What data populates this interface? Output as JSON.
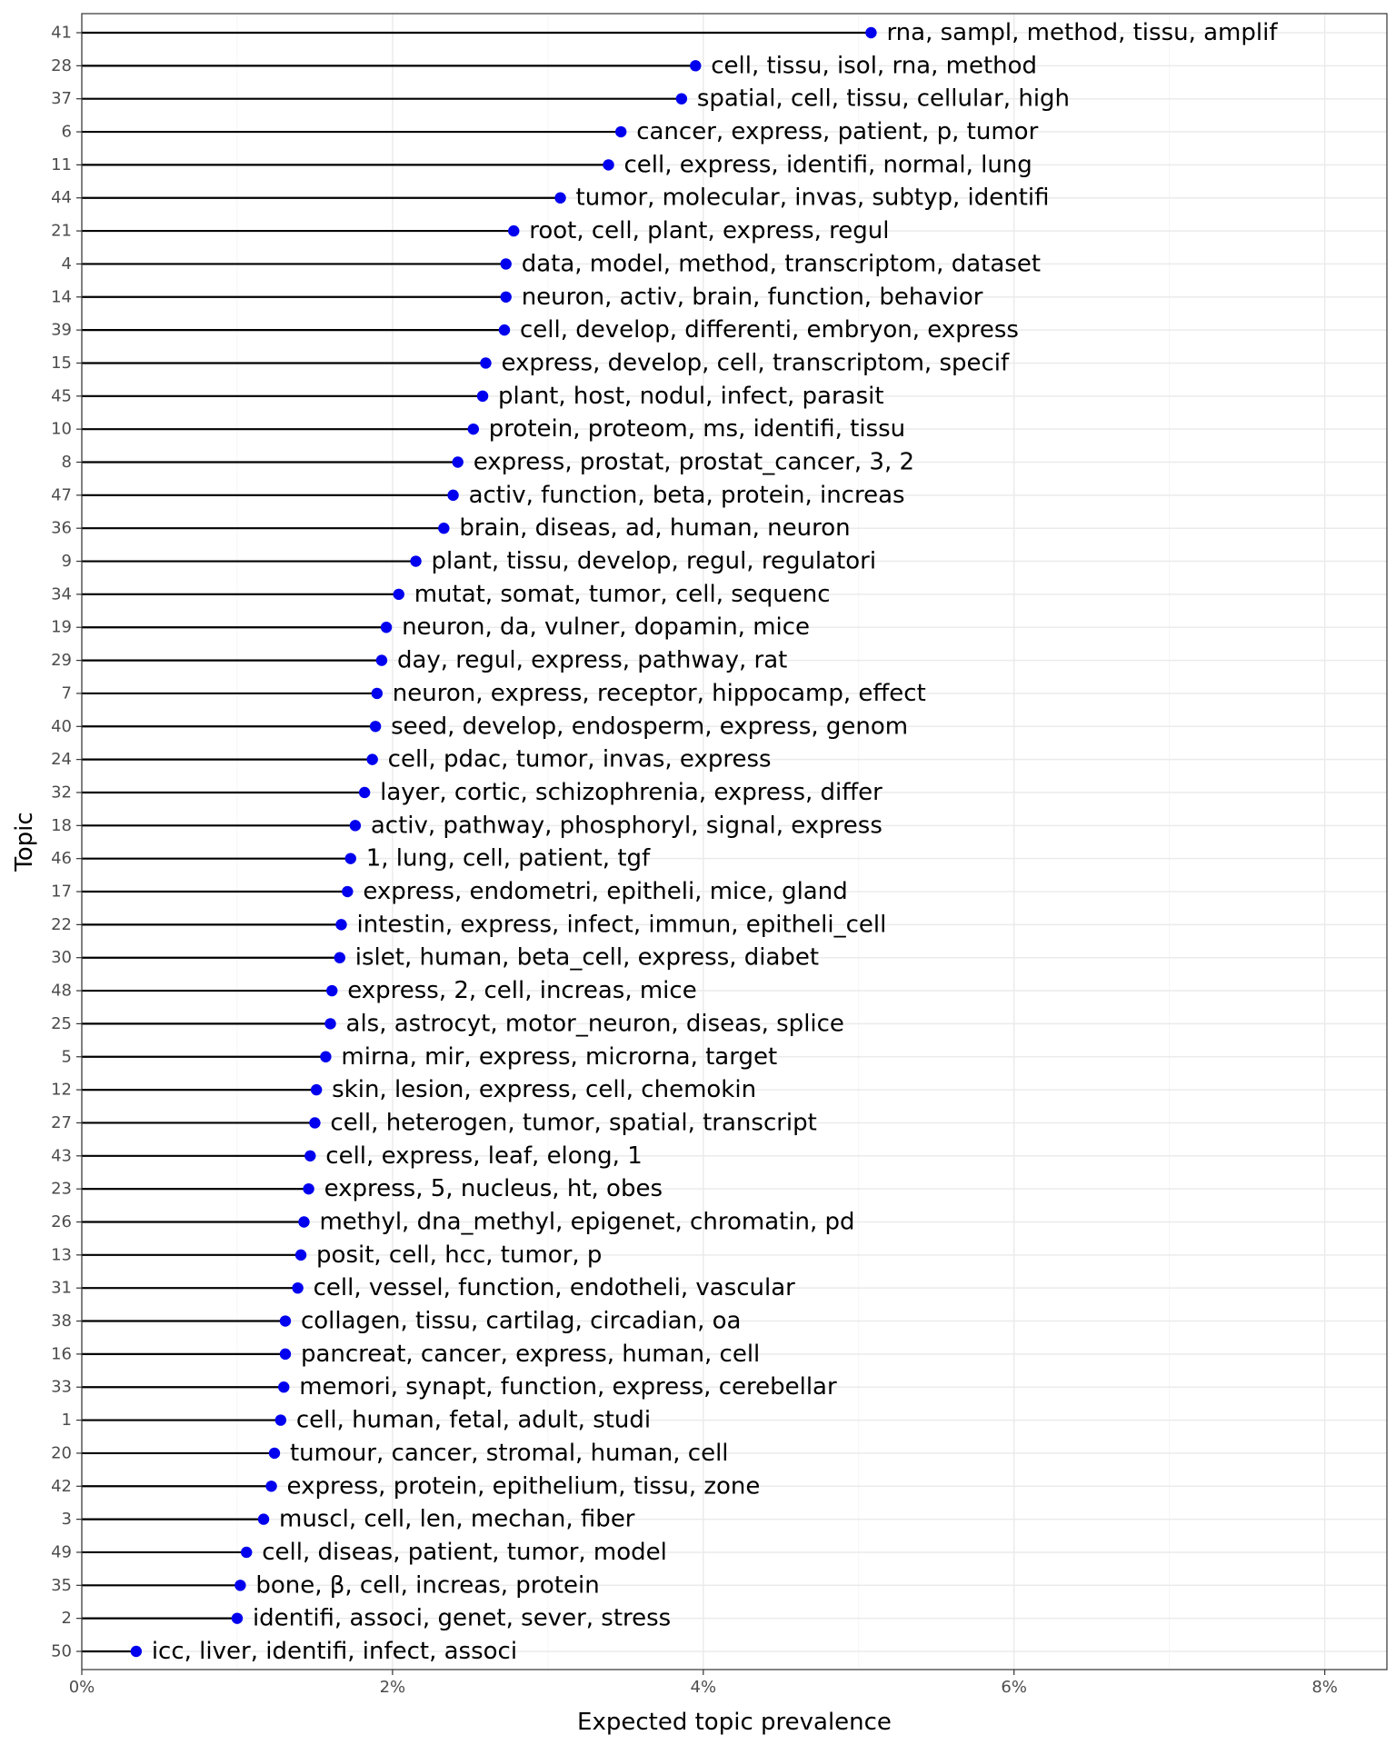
{
  "chart_data": {
    "type": "lollipop",
    "orientation": "horizontal",
    "xlabel": "Expected topic prevalence",
    "ylabel": "Topic",
    "xlim": [
      0,
      0.084
    ],
    "x_ticks": [
      {
        "value": 0,
        "label": "0%"
      },
      {
        "value": 0.02,
        "label": "2%"
      },
      {
        "value": 0.04,
        "label": "4%"
      },
      {
        "value": 0.06,
        "label": "6%"
      },
      {
        "value": 0.08,
        "label": "8%"
      }
    ],
    "x_minor_ticks": [
      0.01,
      0.03,
      0.05,
      0.07
    ],
    "grid": true,
    "point_color": "#0000ee",
    "stem_color": "#000000",
    "topics": [
      {
        "topic": "41",
        "value": 0.0508,
        "terms": "rna, sampl, method, tissu, amplif"
      },
      {
        "topic": "28",
        "value": 0.0395,
        "terms": "cell, tissu, isol, rna, method"
      },
      {
        "topic": "37",
        "value": 0.0386,
        "terms": "spatial, cell, tissu, cellular, high"
      },
      {
        "topic": "6",
        "value": 0.0347,
        "terms": "cancer, express, patient, p, tumor"
      },
      {
        "topic": "11",
        "value": 0.0339,
        "terms": "cell, express, identifi, normal, lung"
      },
      {
        "topic": "44",
        "value": 0.0308,
        "terms": "tumor, molecular, invas, subtyp, identifi"
      },
      {
        "topic": "21",
        "value": 0.0278,
        "terms": "root, cell, plant, express, regul"
      },
      {
        "topic": "4",
        "value": 0.0273,
        "terms": "data, model, method, transcriptom, dataset"
      },
      {
        "topic": "14",
        "value": 0.0273,
        "terms": "neuron, activ, brain, function, behavior"
      },
      {
        "topic": "39",
        "value": 0.0272,
        "terms": "cell, develop, differenti, embryon, express"
      },
      {
        "topic": "15",
        "value": 0.026,
        "terms": "express, develop, cell, transcriptom, specif"
      },
      {
        "topic": "45",
        "value": 0.0258,
        "terms": "plant, host, nodul, infect, parasit"
      },
      {
        "topic": "10",
        "value": 0.0252,
        "terms": "protein, proteom, ms, identifi, tissu"
      },
      {
        "topic": "8",
        "value": 0.0242,
        "terms": "express, prostat, prostat_cancer, 3, 2"
      },
      {
        "topic": "47",
        "value": 0.0239,
        "terms": "activ, function, beta, protein, increas"
      },
      {
        "topic": "36",
        "value": 0.0233,
        "terms": "brain, diseas, ad, human, neuron"
      },
      {
        "topic": "9",
        "value": 0.0215,
        "terms": "plant, tissu, develop, regul, regulatori"
      },
      {
        "topic": "34",
        "value": 0.0204,
        "terms": "mutat, somat, tumor, cell, sequenc"
      },
      {
        "topic": "19",
        "value": 0.0196,
        "terms": "neuron, da, vulner, dopamin, mice"
      },
      {
        "topic": "29",
        "value": 0.0193,
        "terms": "day, regul, express, pathway, rat"
      },
      {
        "topic": "7",
        "value": 0.019,
        "terms": "neuron, express, receptor, hippocamp, effect"
      },
      {
        "topic": "40",
        "value": 0.0189,
        "terms": "seed, develop, endosperm, express, genom"
      },
      {
        "topic": "24",
        "value": 0.0187,
        "terms": "cell, pdac, tumor, invas, express"
      },
      {
        "topic": "32",
        "value": 0.0182,
        "terms": "layer, cortic, schizophrenia, express, differ"
      },
      {
        "topic": "18",
        "value": 0.0176,
        "terms": "activ, pathway, phosphoryl, signal, express"
      },
      {
        "topic": "46",
        "value": 0.0173,
        "terms": "1, lung, cell, patient, tgf"
      },
      {
        "topic": "17",
        "value": 0.0171,
        "terms": "express, endometri, epitheli, mice, gland"
      },
      {
        "topic": "22",
        "value": 0.0167,
        "terms": "intestin, express, infect, immun, epitheli_cell"
      },
      {
        "topic": "30",
        "value": 0.0166,
        "terms": "islet, human, beta_cell, express, diabet"
      },
      {
        "topic": "48",
        "value": 0.0161,
        "terms": "express, 2, cell, increas, mice"
      },
      {
        "topic": "25",
        "value": 0.016,
        "terms": "als, astrocyt, motor_neuron, diseas, splice"
      },
      {
        "topic": "5",
        "value": 0.0157,
        "terms": "mirna, mir, express, microrna, target"
      },
      {
        "topic": "12",
        "value": 0.0151,
        "terms": "skin, lesion, express, cell, chemokin"
      },
      {
        "topic": "27",
        "value": 0.015,
        "terms": "cell, heterogen, tumor, spatial, transcript"
      },
      {
        "topic": "43",
        "value": 0.0147,
        "terms": "cell, express, leaf, elong, 1"
      },
      {
        "topic": "23",
        "value": 0.0146,
        "terms": "express, 5, nucleus, ht, obes"
      },
      {
        "topic": "26",
        "value": 0.0143,
        "terms": "methyl, dna_methyl, epigenet, chromatin, pd"
      },
      {
        "topic": "13",
        "value": 0.0141,
        "terms": "posit, cell, hcc, tumor, p"
      },
      {
        "topic": "31",
        "value": 0.0139,
        "terms": "cell, vessel, function, endotheli, vascular"
      },
      {
        "topic": "38",
        "value": 0.0131,
        "terms": "collagen, tissu, cartilag, circadian, oa"
      },
      {
        "topic": "16",
        "value": 0.0131,
        "terms": "pancreat, cancer, express, human, cell"
      },
      {
        "topic": "33",
        "value": 0.013,
        "terms": "memori, synapt, function, express, cerebellar"
      },
      {
        "topic": "1",
        "value": 0.0128,
        "terms": "cell, human, fetal, adult, studi"
      },
      {
        "topic": "20",
        "value": 0.0124,
        "terms": "tumour, cancer, stromal, human, cell"
      },
      {
        "topic": "42",
        "value": 0.0122,
        "terms": "express, protein, epithelium, tissu, zone"
      },
      {
        "topic": "3",
        "value": 0.0117,
        "terms": "muscl, cell, len, mechan, fiber"
      },
      {
        "topic": "49",
        "value": 0.0106,
        "terms": "cell, diseas, patient, tumor, model"
      },
      {
        "topic": "35",
        "value": 0.0102,
        "terms": "bone, β, cell, increas, protein"
      },
      {
        "topic": "2",
        "value": 0.01,
        "terms": "identifi, associ, genet, sever, stress"
      },
      {
        "topic": "50",
        "value": 0.0035,
        "terms": "icc, liver, identifi, infect, associ"
      }
    ]
  }
}
